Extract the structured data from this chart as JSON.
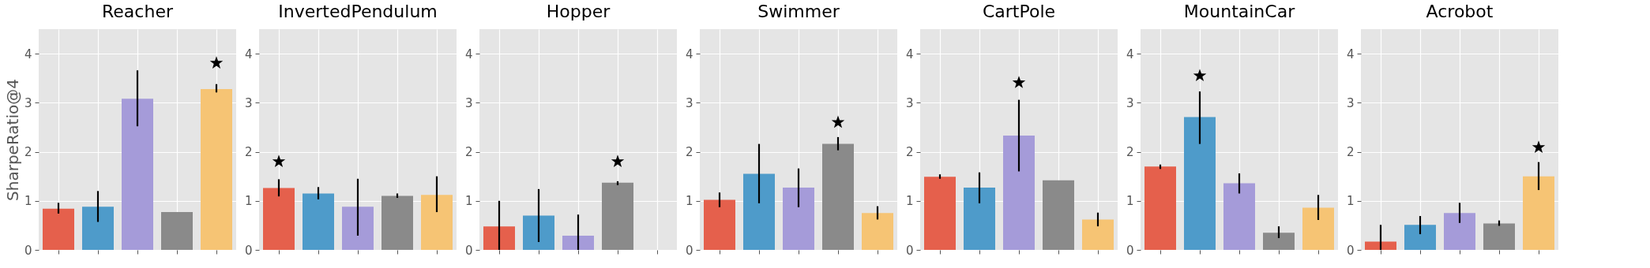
{
  "chart_data": [
    {
      "type": "bar",
      "title": "Reacher",
      "ylabel": "SharpeRatio@4",
      "categories": [
        null,
        null,
        null,
        null,
        null
      ],
      "ylim": [
        0,
        4.5
      ],
      "yticks": [
        0,
        1,
        2,
        3,
        4
      ],
      "grid": true,
      "series": [
        {
          "type": "bar",
          "colors": [
            "#e5604c",
            "#4e9bca",
            "#a59bd9",
            "#8a8a8a",
            "#f6c474"
          ],
          "values": [
            0.84,
            0.88,
            3.08,
            0.77,
            3.28
          ],
          "errors": [
            [
              0.74,
              0.96
            ],
            [
              0.57,
              1.2
            ],
            [
              2.52,
              3.66
            ],
            null,
            [
              3.21,
              3.38
            ]
          ]
        },
        {
          "type": "scatter",
          "marker": "star",
          "color": "#000000",
          "values": [
            null,
            null,
            null,
            null,
            3.81
          ]
        }
      ]
    },
    {
      "type": "bar",
      "title": "InvertedPendulum",
      "categories": [
        null,
        null,
        null,
        null,
        null
      ],
      "ylim": [
        0,
        4.5
      ],
      "yticks": [
        0,
        1,
        2,
        3,
        4
      ],
      "grid": true,
      "series": [
        {
          "type": "bar",
          "colors": [
            "#e5604c",
            "#4e9bca",
            "#a59bd9",
            "#8a8a8a",
            "#f6c474"
          ],
          "values": [
            1.26,
            1.15,
            0.88,
            1.1,
            1.12
          ],
          "errors": [
            [
              1.09,
              1.44
            ],
            [
              1.03,
              1.28
            ],
            [
              0.29,
              1.45
            ],
            [
              1.06,
              1.15
            ],
            [
              0.77,
              1.5
            ]
          ]
        },
        {
          "type": "scatter",
          "marker": "star",
          "color": "#000000",
          "values": [
            1.8,
            null,
            null,
            null,
            null
          ]
        }
      ]
    },
    {
      "type": "bar",
      "title": "Hopper",
      "categories": [
        null,
        null,
        null,
        null,
        null
      ],
      "ylim": [
        0,
        4.5
      ],
      "yticks": [
        0,
        1,
        2,
        3,
        4
      ],
      "grid": true,
      "series": [
        {
          "type": "bar",
          "colors": [
            "#e5604c",
            "#4e9bca",
            "#a59bd9",
            "#8a8a8a",
            null
          ],
          "values": [
            0.48,
            0.7,
            0.29,
            1.37,
            null
          ],
          "errors": [
            [
              0,
              1.0
            ],
            [
              0.16,
              1.24
            ],
            [
              0,
              0.72
            ],
            [
              1.32,
              1.4
            ],
            null
          ]
        },
        {
          "type": "scatter",
          "marker": "star",
          "color": "#000000",
          "values": [
            null,
            null,
            null,
            1.8,
            null
          ]
        }
      ]
    },
    {
      "type": "bar",
      "title": "Swimmer",
      "categories": [
        null,
        null,
        null,
        null,
        null
      ],
      "ylim": [
        0,
        4.5
      ],
      "yticks": [
        0,
        1,
        2,
        3,
        4
      ],
      "grid": true,
      "series": [
        {
          "type": "bar",
          "colors": [
            "#e5604c",
            "#4e9bca",
            "#a59bd9",
            "#8a8a8a",
            "#f6c474"
          ],
          "values": [
            1.02,
            1.55,
            1.27,
            2.16,
            0.75
          ],
          "errors": [
            [
              0.87,
              1.17
            ],
            [
              0.95,
              2.16
            ],
            [
              0.87,
              1.66
            ],
            [
              2.03,
              2.3
            ],
            [
              0.62,
              0.89
            ]
          ]
        },
        {
          "type": "scatter",
          "marker": "star",
          "color": "#000000",
          "values": [
            null,
            null,
            null,
            2.6,
            null
          ]
        }
      ]
    },
    {
      "type": "bar",
      "title": "CartPole",
      "categories": [
        null,
        null,
        null,
        null,
        null
      ],
      "ylim": [
        0,
        4.5
      ],
      "yticks": [
        0,
        1,
        2,
        3,
        4
      ],
      "grid": true,
      "series": [
        {
          "type": "bar",
          "colors": [
            "#e5604c",
            "#4e9bca",
            "#a59bd9",
            "#8a8a8a",
            "#f6c474"
          ],
          "values": [
            1.49,
            1.27,
            2.33,
            1.42,
            0.62
          ],
          "errors": [
            [
              1.45,
              1.54
            ],
            [
              0.95,
              1.58
            ],
            [
              1.6,
              3.06
            ],
            null,
            [
              0.48,
              0.76
            ]
          ]
        },
        {
          "type": "scatter",
          "marker": "star",
          "color": "#000000",
          "values": [
            null,
            null,
            3.41,
            null,
            null
          ]
        }
      ]
    },
    {
      "type": "bar",
      "title": "MountainCar",
      "categories": [
        null,
        null,
        null,
        null,
        null
      ],
      "ylim": [
        0,
        4.5
      ],
      "yticks": [
        0,
        1,
        2,
        3,
        4
      ],
      "grid": true,
      "series": [
        {
          "type": "bar",
          "colors": [
            "#e5604c",
            "#4e9bca",
            "#a59bd9",
            "#8a8a8a",
            "#f6c474"
          ],
          "values": [
            1.7,
            2.71,
            1.36,
            0.35,
            0.86
          ],
          "errors": [
            [
              1.65,
              1.74
            ],
            [
              2.16,
              3.23
            ],
            [
              1.15,
              1.56
            ],
            [
              0.24,
              0.48
            ],
            [
              0.61,
              1.12
            ]
          ]
        },
        {
          "type": "scatter",
          "marker": "star",
          "color": "#000000",
          "values": [
            null,
            3.55,
            null,
            null,
            null
          ]
        }
      ]
    },
    {
      "type": "bar",
      "title": "Acrobot",
      "categories": [
        null,
        null,
        null,
        null,
        null
      ],
      "ylim": [
        0,
        4.5
      ],
      "yticks": [
        0,
        1,
        2,
        3,
        4
      ],
      "grid": true,
      "series": [
        {
          "type": "bar",
          "colors": [
            "#e5604c",
            "#4e9bca",
            "#a59bd9",
            "#8a8a8a",
            "#f6c474"
          ],
          "values": [
            0.17,
            0.51,
            0.75,
            0.54,
            1.5
          ],
          "errors": [
            [
              0,
              0.51
            ],
            [
              0.32,
              0.69
            ],
            [
              0.55,
              0.96
            ],
            [
              0.49,
              0.6
            ],
            [
              1.22,
              1.79
            ]
          ]
        },
        {
          "type": "scatter",
          "marker": "star",
          "color": "#000000",
          "values": [
            null,
            null,
            null,
            null,
            2.09
          ]
        }
      ]
    }
  ]
}
